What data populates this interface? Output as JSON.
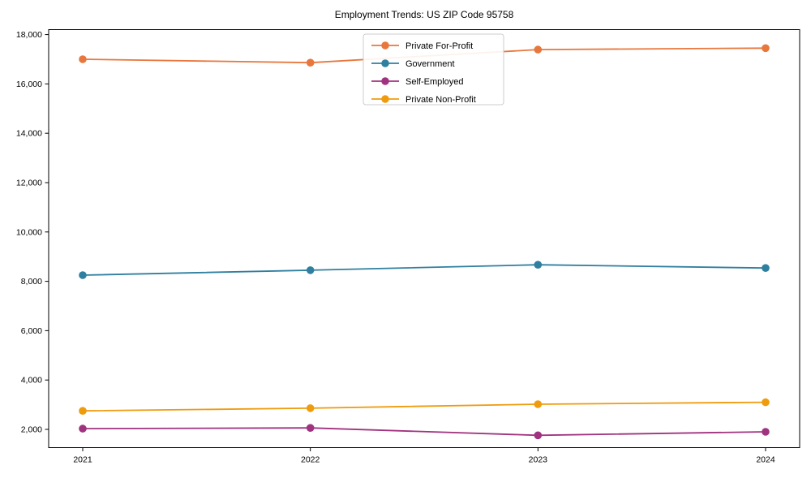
{
  "title": "Employment Trends: US ZIP Code 95758",
  "chart_data": {
    "type": "line",
    "title": "Employment Trends: US ZIP Code 95758",
    "xlabel": "",
    "ylabel": "",
    "categories": [
      "2021",
      "2022",
      "2023",
      "2024"
    ],
    "x": [
      2021,
      2022,
      2023,
      2024
    ],
    "series": [
      {
        "name": "Private For-Profit",
        "color": "#e8773d",
        "values": [
          17000,
          16860,
          17390,
          17450
        ]
      },
      {
        "name": "Government",
        "color": "#2f7fa0",
        "values": [
          8250,
          8450,
          8670,
          8540
        ]
      },
      {
        "name": "Self-Employed",
        "color": "#a03380",
        "values": [
          2030,
          2060,
          1760,
          1900
        ]
      },
      {
        "name": "Private Non-Profit",
        "color": "#ef9b0e",
        "values": [
          2750,
          2860,
          3020,
          3100
        ]
      }
    ],
    "ylim": [
      1260,
      18200
    ],
    "yticks": [
      2000,
      4000,
      6000,
      8000,
      10000,
      12000,
      14000,
      16000,
      18000
    ],
    "ytick_labels": [
      "2,000",
      "4,000",
      "6,000",
      "8,000",
      "10,000",
      "12,000",
      "14,000",
      "16,000",
      "18,000"
    ],
    "grid": false,
    "marker": "o",
    "legend_position": "upper center",
    "axis_color": "#000000",
    "background_color": "#ffffff"
  }
}
